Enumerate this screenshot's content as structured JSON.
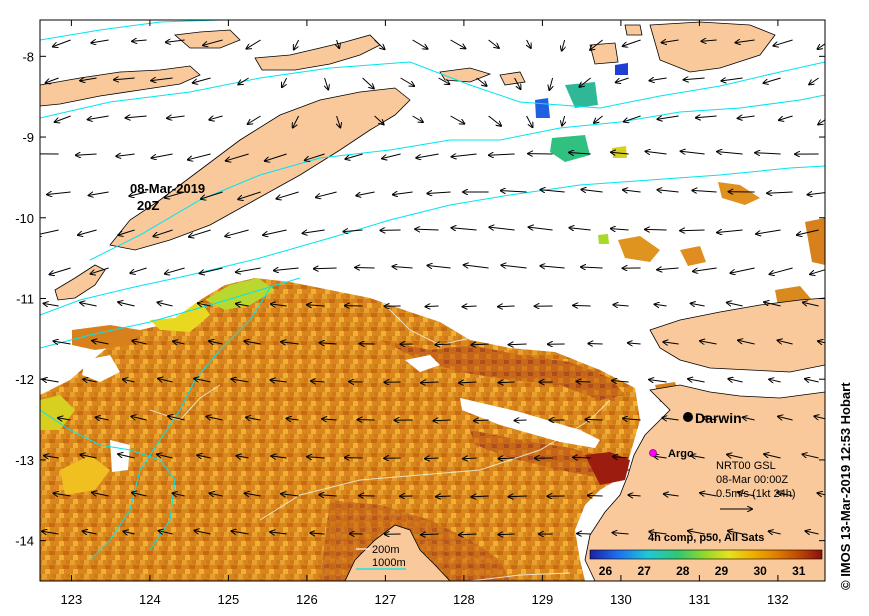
{
  "map": {
    "x_ticks": [
      "123",
      "124",
      "125",
      "126",
      "127",
      "128",
      "129",
      "130",
      "131",
      "132"
    ],
    "y_ticks": [
      "-8",
      "-9",
      "-10",
      "-11",
      "-12",
      "-13",
      "-14"
    ],
    "x_range_deg_e": [
      122.6,
      132.6
    ],
    "y_range_deg": [
      -7.55,
      -14.5
    ]
  },
  "labels": {
    "snapshot_date": "08-Mar-2019",
    "snapshot_time": "20Z",
    "city": "Darwin",
    "float": "Argo",
    "current_source": "NRT00 GSL",
    "current_time": "08-Mar 00:00Z",
    "current_scale": "0.5m/s (1kt 24h)",
    "composite": "4h comp, p50, All Sats",
    "isobath_200": "200m",
    "isobath_1000": "1000m",
    "copyright": "© IMOS 13-Mar-2019 12:53 Hobart"
  },
  "colorbar": {
    "ticks": [
      "26",
      "27",
      "28",
      "29",
      "30",
      "31"
    ],
    "range": [
      25.6,
      31.6
    ],
    "colors": [
      "#1f1fa0",
      "#1e6ff0",
      "#20c8d8",
      "#30c870",
      "#9ad82a",
      "#e8e020",
      "#f0b000",
      "#e08000",
      "#c04800",
      "#8a1010"
    ]
  },
  "colors": {
    "land": "#f9c99b",
    "isobath": "#00e5f0",
    "sst_warm": "#e09420",
    "sst_hot": "#c05a10",
    "argo_marker": "#ff00ff"
  }
}
